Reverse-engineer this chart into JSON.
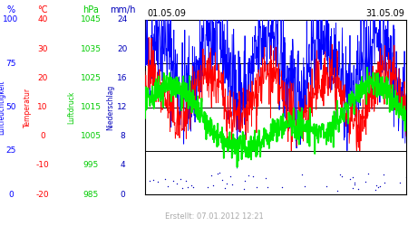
{
  "title_left": "01.05.09",
  "title_right": "31.05.09",
  "footer": "Erstellt: 07.01.2012 12:21",
  "bg_color": "#ffffff",
  "plot_bg_color": "#ffffff",
  "axis1": {
    "label": "%",
    "color": "#0000ff",
    "ticks": [
      0,
      25,
      50,
      75,
      100
    ],
    "ylim": [
      0,
      100
    ]
  },
  "axis2": {
    "label": "°C",
    "color": "#ff0000",
    "ticks": [
      -20,
      -10,
      0,
      10,
      20,
      30,
      40
    ],
    "ylim": [
      -20,
      40
    ]
  },
  "axis3": {
    "label": "hPa",
    "color": "#00cc00",
    "ticks": [
      985,
      995,
      1005,
      1015,
      1025,
      1035,
      1045
    ],
    "ylim": [
      985,
      1045
    ]
  },
  "axis4": {
    "label": "mm/h",
    "color": "#0000bb",
    "ticks": [
      0,
      4,
      8,
      12,
      16,
      20,
      24
    ],
    "ylim": [
      0,
      24
    ]
  },
  "grid_color": "#000000",
  "grid_linewidth": 0.7,
  "hum_color": "#0000ff",
  "temp_color": "#ff0000",
  "press_color": "#00ee00",
  "rain_color": "#0000bb",
  "label_color_hum": "#0000ff",
  "label_color_temp": "#ff0000",
  "label_color_press": "#00cc00",
  "label_color_rain": "#0000bb",
  "label_Luftfeuchtigkeit": "Luftfeuchtigkeit",
  "label_Temperatur": "Temperatur",
  "label_Luftdruck": "Luftdruck",
  "label_Niederschlag": "Niederschlag",
  "n_points": 744,
  "seed": 42
}
